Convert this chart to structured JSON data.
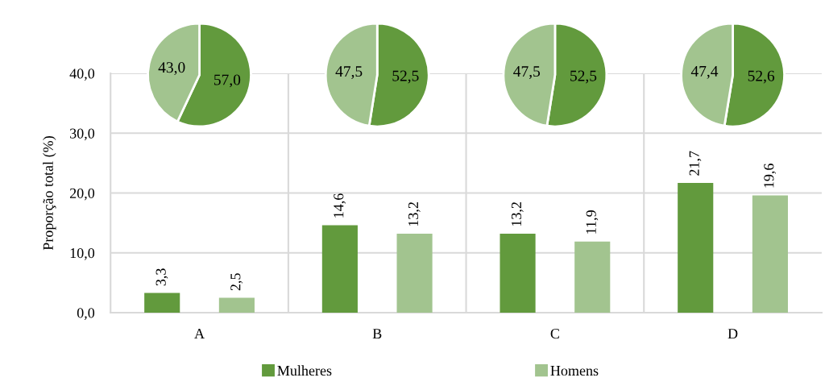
{
  "chart_data": [
    {
      "type": "bar",
      "ylabel": "Proporção total (%)",
      "categories": [
        "A",
        "B",
        "C",
        "D"
      ],
      "series": [
        {
          "name": "Mulheres",
          "color": "#629a3d",
          "values": [
            3.3,
            14.6,
            13.2,
            21.7
          ],
          "value_labels": [
            "3,3",
            "14,6",
            "13,2",
            "21,7"
          ]
        },
        {
          "name": "Homens",
          "color": "#a2c48f",
          "values": [
            2.5,
            13.2,
            11.9,
            19.6
          ],
          "value_labels": [
            "2,5",
            "13,2",
            "11,9",
            "19,6"
          ]
        }
      ],
      "ylim": [
        0,
        40
      ],
      "yticks": [
        {
          "value": 0,
          "label": "0,0"
        },
        {
          "value": 10,
          "label": "10,0"
        },
        {
          "value": 20,
          "label": "20,0"
        },
        {
          "value": 30,
          "label": "30,0"
        },
        {
          "value": 40,
          "label": "40,0"
        }
      ],
      "grid": true,
      "legend": "bottom"
    },
    {
      "type": "pie",
      "categories": [
        null,
        null
      ],
      "values": [
        57.0,
        43.0
      ],
      "colors": [
        "#629a3d",
        "#a2c48f"
      ],
      "value_labels": [
        "57,0",
        "43,0"
      ]
    },
    {
      "type": "pie",
      "categories": [
        null,
        null
      ],
      "values": [
        52.5,
        47.5
      ],
      "colors": [
        "#629a3d",
        "#a2c48f"
      ],
      "value_labels": [
        "52,5",
        "47,5"
      ]
    },
    {
      "type": "pie",
      "categories": [
        null,
        null
      ],
      "values": [
        52.5,
        47.5
      ],
      "colors": [
        "#629a3d",
        "#a2c48f"
      ],
      "value_labels": [
        "52,5",
        "47,5"
      ]
    },
    {
      "type": "pie",
      "categories": [
        null,
        null
      ],
      "values": [
        52.6,
        47.4
      ],
      "colors": [
        "#629a3d",
        "#a2c48f"
      ],
      "value_labels": [
        "52,6",
        "47,4"
      ]
    }
  ]
}
